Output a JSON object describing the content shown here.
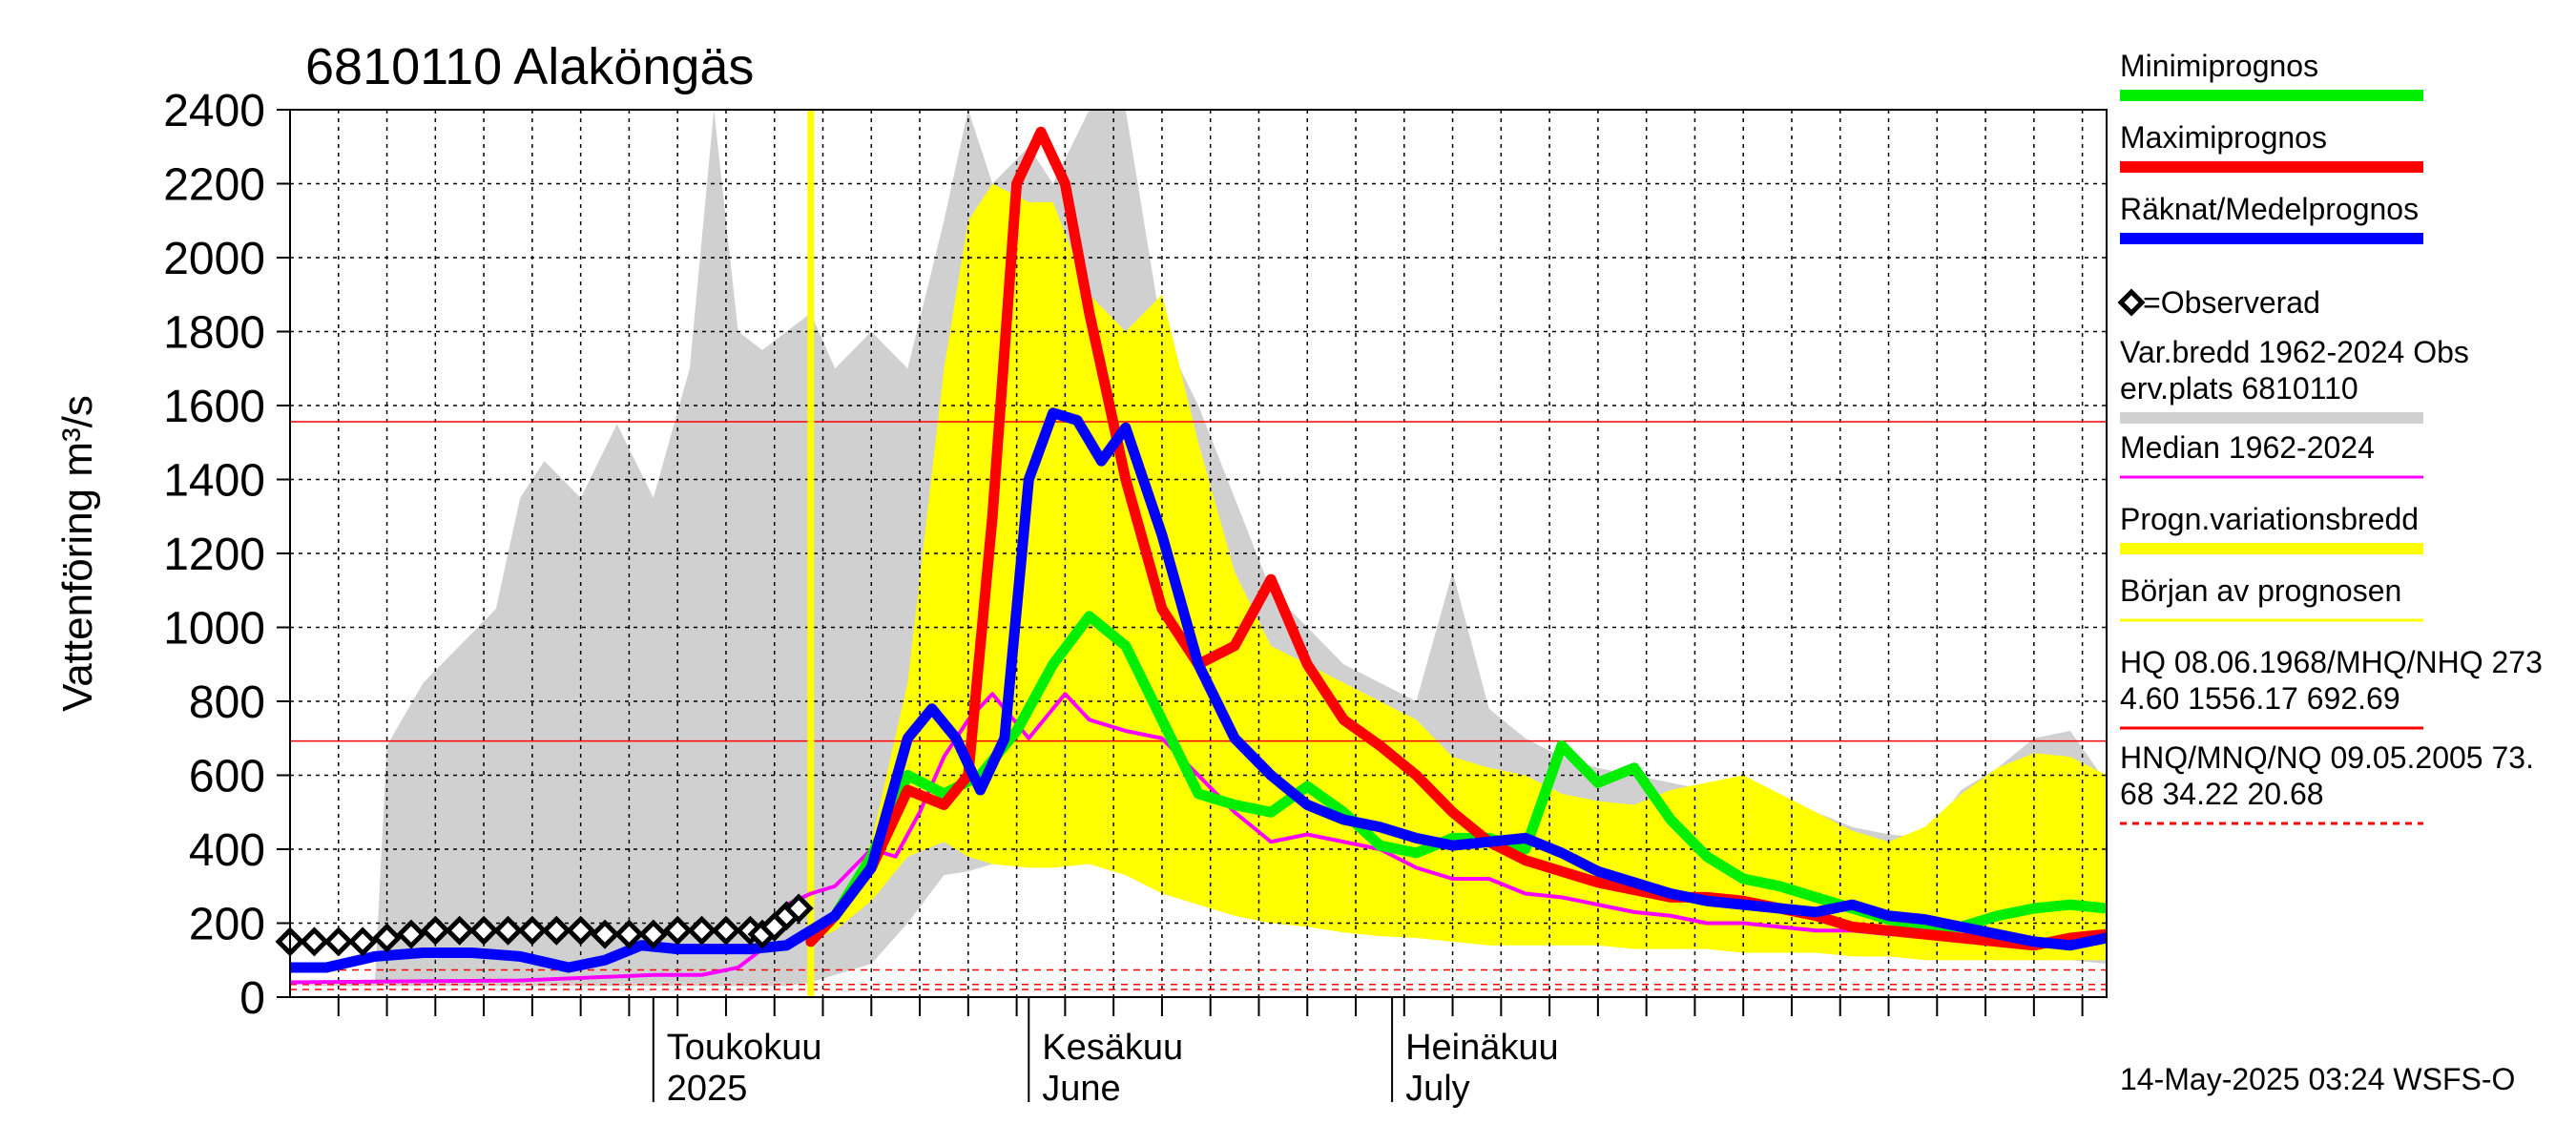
{
  "chart_data": {
    "type": "line",
    "title": "6810110 Alaköngäs",
    "ylabel": "Vattenföring m³/s",
    "ylim": [
      0,
      2400
    ],
    "yticks": [
      0,
      200,
      400,
      600,
      800,
      1000,
      1200,
      1400,
      1600,
      1800,
      2000,
      2200,
      2400
    ],
    "xlim": [
      "2025-04-01",
      "2025-08-29"
    ],
    "grid": true,
    "legend_position": "right",
    "month_labels": [
      {
        "date": "2025-05-01",
        "line1": "Toukokuu",
        "line2": "2025"
      },
      {
        "date": "2025-06-01",
        "line1": "Kesäkuu",
        "line2": "June"
      },
      {
        "date": "2025-07-01",
        "line1": "Heinäkuu",
        "line2": "July"
      }
    ],
    "forecast_start": "2025-05-14",
    "reference_lines": [
      {
        "name": "MHQ",
        "value": 1556.17,
        "color": "#ff0000",
        "style": "solid"
      },
      {
        "name": "NHQ",
        "value": 692.69,
        "color": "#ff0000",
        "style": "solid"
      },
      {
        "name": "HNQ",
        "value": 73.68,
        "color": "#ff0000",
        "style": "dashed"
      },
      {
        "name": "MNQ",
        "value": 34.22,
        "color": "#ff0000",
        "style": "dashed"
      },
      {
        "name": "NQ",
        "value": 20.68,
        "color": "#ff0000",
        "style": "dashed"
      }
    ],
    "series": [
      {
        "name": "Var.bredd 1962-2024 Obs erv.plats 6810110",
        "type": "band",
        "color": "#d0d0d0",
        "x": [
          "2025-04-01",
          "2025-04-08",
          "2025-04-09",
          "2025-04-12",
          "2025-04-15",
          "2025-04-18",
          "2025-04-20",
          "2025-04-22",
          "2025-04-25",
          "2025-04-28",
          "2025-05-01",
          "2025-05-04",
          "2025-05-06",
          "2025-05-08",
          "2025-05-10",
          "2025-05-12",
          "2025-05-14",
          "2025-05-16",
          "2025-05-19",
          "2025-05-22",
          "2025-05-25",
          "2025-05-27",
          "2025-05-29",
          "2025-06-01",
          "2025-06-03",
          "2025-06-06",
          "2025-06-09",
          "2025-06-12",
          "2025-06-15",
          "2025-06-18",
          "2025-06-21",
          "2025-06-24",
          "2025-06-27",
          "2025-06-30",
          "2025-07-03",
          "2025-07-06",
          "2025-07-09",
          "2025-07-12",
          "2025-07-15",
          "2025-07-18",
          "2025-07-21",
          "2025-07-24",
          "2025-07-27",
          "2025-07-30",
          "2025-08-02",
          "2025-08-05",
          "2025-08-08",
          "2025-08-11",
          "2025-08-14",
          "2025-08-17",
          "2025-08-20",
          "2025-08-23",
          "2025-08-26",
          "2025-08-29"
        ],
        "low": [
          30,
          30,
          30,
          30,
          30,
          30,
          30,
          30,
          30,
          30,
          30,
          30,
          30,
          30,
          30,
          30,
          40,
          60,
          90,
          200,
          330,
          340,
          360,
          390,
          420,
          500,
          440,
          360,
          320,
          280,
          250,
          230,
          220,
          200,
          180,
          170,
          160,
          160,
          150,
          150,
          140,
          140,
          140,
          130,
          130,
          130,
          120,
          120,
          110,
          110,
          100,
          100,
          100,
          90
        ],
        "high": [
          30,
          40,
          680,
          850,
          950,
          1050,
          1350,
          1450,
          1350,
          1550,
          1350,
          1700,
          2400,
          1800,
          1750,
          1800,
          1850,
          1700,
          1800,
          1700,
          2100,
          2400,
          2200,
          2300,
          2200,
          2400,
          2400,
          1800,
          1600,
          1350,
          1100,
          1000,
          900,
          850,
          800,
          1150,
          780,
          700,
          650,
          620,
          600,
          580,
          560,
          540,
          520,
          500,
          460,
          440,
          430,
          560,
          620,
          700,
          720,
          580
        ]
      },
      {
        "name": "Progn.variationsbredd",
        "type": "band",
        "color": "#ffff00",
        "x": [
          "2025-05-14",
          "2025-05-16",
          "2025-05-19",
          "2025-05-22",
          "2025-05-25",
          "2025-05-27",
          "2025-05-29",
          "2025-06-01",
          "2025-06-03",
          "2025-06-06",
          "2025-06-09",
          "2025-06-12",
          "2025-06-15",
          "2025-06-18",
          "2025-06-21",
          "2025-06-24",
          "2025-06-27",
          "2025-06-30",
          "2025-07-03",
          "2025-07-06",
          "2025-07-09",
          "2025-07-12",
          "2025-07-15",
          "2025-07-18",
          "2025-07-21",
          "2025-07-24",
          "2025-07-27",
          "2025-07-30",
          "2025-08-02",
          "2025-08-05",
          "2025-08-08",
          "2025-08-11",
          "2025-08-14",
          "2025-08-17",
          "2025-08-20",
          "2025-08-23",
          "2025-08-26",
          "2025-08-29"
        ],
        "low": [
          150,
          180,
          260,
          380,
          420,
          380,
          360,
          350,
          350,
          360,
          330,
          280,
          250,
          220,
          200,
          190,
          175,
          165,
          160,
          150,
          140,
          140,
          140,
          140,
          130,
          130,
          130,
          120,
          120,
          120,
          110,
          110,
          100,
          100,
          100,
          100,
          100,
          100
        ],
        "high": [
          150,
          220,
          420,
          850,
          1700,
          2100,
          2200,
          2150,
          2150,
          1900,
          1800,
          1900,
          1500,
          1150,
          950,
          900,
          850,
          800,
          750,
          650,
          620,
          600,
          550,
          530,
          520,
          560,
          580,
          600,
          550,
          500,
          450,
          420,
          460,
          550,
          620,
          660,
          650,
          600
        ]
      },
      {
        "name": "Median 1962-2024",
        "color": "#ff00ff",
        "width": 4,
        "x": [
          "2025-04-01",
          "2025-04-20",
          "2025-05-01",
          "2025-05-05",
          "2025-05-08",
          "2025-05-10",
          "2025-05-12",
          "2025-05-14",
          "2025-05-16",
          "2025-05-19",
          "2025-05-21",
          "2025-05-23",
          "2025-05-25",
          "2025-05-27",
          "2025-05-29",
          "2025-06-01",
          "2025-06-04",
          "2025-06-06",
          "2025-06-09",
          "2025-06-12",
          "2025-06-15",
          "2025-06-18",
          "2025-06-21",
          "2025-06-24",
          "2025-06-27",
          "2025-06-30",
          "2025-07-03",
          "2025-07-06",
          "2025-07-09",
          "2025-07-12",
          "2025-07-15",
          "2025-07-18",
          "2025-07-21",
          "2025-07-24",
          "2025-07-27",
          "2025-07-30",
          "2025-08-02",
          "2025-08-05",
          "2025-08-08",
          "2025-08-11",
          "2025-08-14",
          "2025-08-17",
          "2025-08-20",
          "2025-08-23",
          "2025-08-26",
          "2025-08-29"
        ],
        "y": [
          40,
          45,
          60,
          60,
          80,
          130,
          250,
          280,
          300,
          400,
          380,
          500,
          650,
          750,
          820,
          700,
          820,
          750,
          720,
          700,
          600,
          500,
          420,
          440,
          420,
          400,
          350,
          320,
          320,
          280,
          270,
          250,
          230,
          220,
          200,
          200,
          190,
          180,
          180,
          170,
          170,
          160,
          160,
          150,
          150,
          150
        ]
      },
      {
        "name": "Minimiprognos",
        "color": "#00ee00",
        "width": 11,
        "x": [
          "2025-05-14",
          "2025-05-16",
          "2025-05-19",
          "2025-05-22",
          "2025-05-25",
          "2025-05-28",
          "2025-05-31",
          "2025-06-03",
          "2025-06-06",
          "2025-06-09",
          "2025-06-12",
          "2025-06-15",
          "2025-06-18",
          "2025-06-21",
          "2025-06-24",
          "2025-06-27",
          "2025-06-30",
          "2025-07-03",
          "2025-07-06",
          "2025-07-09",
          "2025-07-12",
          "2025-07-15",
          "2025-07-18",
          "2025-07-21",
          "2025-07-24",
          "2025-07-27",
          "2025-07-30",
          "2025-08-02",
          "2025-08-05",
          "2025-08-08",
          "2025-08-11",
          "2025-08-14",
          "2025-08-17",
          "2025-08-20",
          "2025-08-23",
          "2025-08-26",
          "2025-08-29"
        ],
        "y": [
          150,
          220,
          380,
          600,
          550,
          600,
          720,
          900,
          1030,
          950,
          750,
          550,
          520,
          500,
          570,
          500,
          410,
          390,
          430,
          430,
          400,
          680,
          580,
          620,
          480,
          380,
          320,
          300,
          270,
          240,
          210,
          190,
          190,
          220,
          240,
          250,
          240
        ]
      },
      {
        "name": "Maximiprognos",
        "color": "#ff0000",
        "width": 11,
        "x": [
          "2025-05-14",
          "2025-05-16",
          "2025-05-19",
          "2025-05-22",
          "2025-05-25",
          "2025-05-27",
          "2025-05-29",
          "2025-05-31",
          "2025-06-02",
          "2025-06-04",
          "2025-06-06",
          "2025-06-09",
          "2025-06-12",
          "2025-06-15",
          "2025-06-18",
          "2025-06-21",
          "2025-06-24",
          "2025-06-27",
          "2025-06-30",
          "2025-07-03",
          "2025-07-06",
          "2025-07-09",
          "2025-07-12",
          "2025-07-15",
          "2025-07-18",
          "2025-07-21",
          "2025-07-24",
          "2025-07-27",
          "2025-07-30",
          "2025-08-02",
          "2025-08-05",
          "2025-08-08",
          "2025-08-11",
          "2025-08-14",
          "2025-08-17",
          "2025-08-20",
          "2025-08-23",
          "2025-08-26",
          "2025-08-29"
        ],
        "y": [
          150,
          220,
          350,
          560,
          520,
          600,
          1300,
          2200,
          2340,
          2200,
          1850,
          1400,
          1050,
          900,
          950,
          1130,
          900,
          750,
          680,
          600,
          500,
          420,
          370,
          340,
          310,
          290,
          270,
          270,
          260,
          240,
          220,
          190,
          180,
          170,
          160,
          150,
          140,
          160,
          170
        ]
      },
      {
        "name": "Räknat/Medelprognos",
        "color": "#0000ff",
        "width": 11,
        "x": [
          "2025-04-01",
          "2025-04-04",
          "2025-04-08",
          "2025-04-12",
          "2025-04-16",
          "2025-04-20",
          "2025-04-24",
          "2025-04-27",
          "2025-04-30",
          "2025-05-03",
          "2025-05-06",
          "2025-05-09",
          "2025-05-12",
          "2025-05-14",
          "2025-05-16",
          "2025-05-19",
          "2025-05-22",
          "2025-05-24",
          "2025-05-26",
          "2025-05-28",
          "2025-05-30",
          "2025-06-01",
          "2025-06-03",
          "2025-06-05",
          "2025-06-07",
          "2025-06-09",
          "2025-06-12",
          "2025-06-15",
          "2025-06-18",
          "2025-06-21",
          "2025-06-24",
          "2025-06-27",
          "2025-06-30",
          "2025-07-03",
          "2025-07-06",
          "2025-07-09",
          "2025-07-12",
          "2025-07-15",
          "2025-07-18",
          "2025-07-21",
          "2025-07-24",
          "2025-07-27",
          "2025-07-30",
          "2025-08-02",
          "2025-08-05",
          "2025-08-08",
          "2025-08-11",
          "2025-08-14",
          "2025-08-17",
          "2025-08-20",
          "2025-08-23",
          "2025-08-26",
          "2025-08-29"
        ],
        "y": [
          80,
          80,
          110,
          120,
          120,
          110,
          80,
          100,
          140,
          130,
          130,
          130,
          140,
          180,
          220,
          350,
          700,
          780,
          700,
          560,
          700,
          1400,
          1580,
          1560,
          1450,
          1540,
          1250,
          900,
          700,
          600,
          520,
          480,
          460,
          430,
          410,
          420,
          430,
          390,
          340,
          310,
          280,
          260,
          250,
          240,
          230,
          250,
          220,
          210,
          190,
          170,
          150,
          140,
          160
        ]
      },
      {
        "name": "Observerad",
        "type": "markers",
        "color": "#000000",
        "x": [
          "2025-04-01",
          "2025-04-03",
          "2025-04-05",
          "2025-04-07",
          "2025-04-09",
          "2025-04-11",
          "2025-04-13",
          "2025-04-15",
          "2025-04-17",
          "2025-04-19",
          "2025-04-21",
          "2025-04-23",
          "2025-04-25",
          "2025-04-27",
          "2025-04-29",
          "2025-05-01",
          "2025-05-03",
          "2025-05-05",
          "2025-05-07",
          "2025-05-09",
          "2025-05-10",
          "2025-05-11",
          "2025-05-12",
          "2025-05-13"
        ],
        "y": [
          150,
          150,
          150,
          150,
          160,
          170,
          180,
          180,
          180,
          180,
          180,
          180,
          180,
          170,
          170,
          170,
          180,
          180,
          180,
          180,
          170,
          190,
          220,
          240
        ]
      }
    ]
  },
  "legend": {
    "items": [
      {
        "label": "Minimiprognos",
        "color": "#00ee00",
        "kind": "thick"
      },
      {
        "label": "Maximiprognos",
        "color": "#ff0000",
        "kind": "thick"
      },
      {
        "label": "Räknat/Medelprognos",
        "color": "#0000ff",
        "kind": "thick"
      },
      {
        "label": "=Observerad",
        "color": "#000000",
        "kind": "diamond"
      },
      {
        "label": "Var.bredd 1962-2024   Obs",
        "label2": "erv.plats 6810110",
        "color": "#d0d0d0",
        "kind": "thick"
      },
      {
        "label": "Median 1962-2024",
        "color": "#ff00ff",
        "kind": "thin"
      },
      {
        "label": "Progn.variationsbredd",
        "color": "#ffff00",
        "kind": "thick"
      },
      {
        "label": "Början av prognosen",
        "color": "#ffff00",
        "kind": "thin"
      },
      {
        "label": "HQ 08.06.1968/MHQ/NHQ 273",
        "label2": "4.60 1556.17 692.69",
        "color": "#ff0000",
        "kind": "thin"
      },
      {
        "label": "HNQ/MNQ/NQ 09.05.2005 73.",
        "label2": "68 34.22 20.68",
        "color": "#ff0000",
        "kind": "dashed"
      }
    ]
  },
  "footer": "14-May-2025 03:24 WSFS-O"
}
